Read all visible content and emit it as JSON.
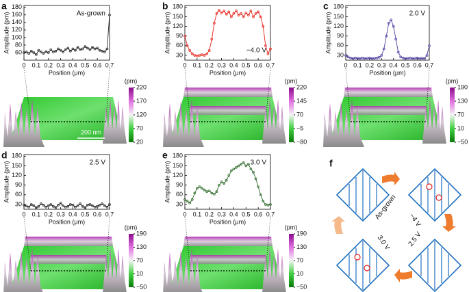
{
  "chart_data": [
    {
      "type": "line",
      "panel": "a",
      "annotation": "As-grown",
      "x_label": "Position (μm)",
      "y_label": "Amplitude (pm)",
      "x": [
        0,
        0.02,
        0.04,
        0.06,
        0.08,
        0.1,
        0.12,
        0.14,
        0.16,
        0.18,
        0.2,
        0.22,
        0.24,
        0.26,
        0.28,
        0.3,
        0.32,
        0.34,
        0.36,
        0.38,
        0.4,
        0.42,
        0.44,
        0.46,
        0.48,
        0.5,
        0.52,
        0.54,
        0.56,
        0.58,
        0.6,
        0.62,
        0.64,
        0.66,
        0.68,
        0.7
      ],
      "series": [
        {
          "color": "#222222",
          "values": [
            60,
            62,
            58,
            64,
            60,
            55,
            66,
            62,
            58,
            63,
            60,
            68,
            62,
            64,
            70,
            66,
            62,
            68,
            72,
            64,
            70,
            66,
            74,
            68,
            70,
            76,
            72,
            68,
            74,
            70,
            72,
            66,
            64,
            62,
            70,
            160
          ]
        }
      ],
      "xlim": [
        0,
        0.7
      ],
      "xticks": [
        0,
        0.1,
        0.2,
        0.3,
        0.4,
        0.5,
        0.6,
        0.7
      ],
      "ylim": [
        40,
        185
      ],
      "yticks": [
        60,
        80,
        100,
        120,
        140,
        160,
        180
      ],
      "scale_bar": "200 nm",
      "colorbar": {
        "unit": "(pm)",
        "ticks": [
          220,
          170,
          120,
          70,
          20
        ]
      }
    },
    {
      "type": "line",
      "panel": "b",
      "annotation": "−4.0 V",
      "x_label": "Position (μm)",
      "y_label": "Amplitude (pm)",
      "x": [
        0,
        0.02,
        0.04,
        0.06,
        0.08,
        0.1,
        0.12,
        0.14,
        0.16,
        0.18,
        0.2,
        0.22,
        0.24,
        0.26,
        0.28,
        0.3,
        0.32,
        0.34,
        0.36,
        0.38,
        0.4,
        0.42,
        0.44,
        0.46,
        0.48,
        0.5,
        0.52,
        0.54,
        0.56,
        0.58,
        0.6,
        0.62,
        0.64,
        0.66,
        0.68,
        0.7
      ],
      "series": [
        {
          "color": "#e8231b",
          "values": [
            90,
            60,
            45,
            35,
            30,
            28,
            30,
            32,
            30,
            35,
            45,
            80,
            130,
            160,
            170,
            162,
            168,
            158,
            165,
            150,
            160,
            168,
            155,
            160,
            150,
            162,
            155,
            168,
            150,
            160,
            165,
            150,
            120,
            60,
            35,
            50
          ]
        }
      ],
      "xlim": [
        0,
        0.7
      ],
      "xticks": [
        0,
        0.1,
        0.2,
        0.3,
        0.4,
        0.5,
        0.6,
        0.7
      ],
      "ylim": [
        15,
        185
      ],
      "yticks": [
        30,
        60,
        90,
        120,
        150,
        180
      ],
      "colorbar": {
        "unit": "(pm)",
        "ticks": [
          220,
          145,
          70,
          {
            "value": -5,
            "label": "−5"
          },
          {
            "value": -80,
            "label": "−80"
          }
        ]
      }
    },
    {
      "type": "line",
      "panel": "c",
      "annotation": "2.0 V",
      "x_label": "Position (μm)",
      "y_label": "Amplitude (pm)",
      "x": [
        0,
        0.02,
        0.04,
        0.06,
        0.08,
        0.1,
        0.12,
        0.14,
        0.16,
        0.18,
        0.2,
        0.22,
        0.24,
        0.26,
        0.28,
        0.3,
        0.32,
        0.34,
        0.36,
        0.38,
        0.4,
        0.42,
        0.44,
        0.46,
        0.48,
        0.5,
        0.52,
        0.54,
        0.56,
        0.58,
        0.6,
        0.62,
        0.64,
        0.66,
        0.68,
        0.7
      ],
      "series": [
        {
          "color": "#4a3fa0",
          "values": [
            30,
            25,
            22,
            20,
            22,
            21,
            20,
            22,
            20,
            21,
            22,
            20,
            21,
            22,
            24,
            30,
            50,
            90,
            130,
            140,
            120,
            80,
            40,
            25,
            22,
            20,
            21,
            22,
            20,
            21,
            22,
            20,
            21,
            20,
            30,
            60
          ]
        }
      ],
      "xlim": [
        0,
        0.7
      ],
      "xticks": [
        0,
        0.1,
        0.2,
        0.3,
        0.4,
        0.5,
        0.6,
        0.7
      ],
      "ylim": [
        15,
        185
      ],
      "yticks": [
        30,
        60,
        90,
        120,
        150,
        180
      ],
      "colorbar": {
        "unit": "(pm)",
        "ticks": [
          190,
          130,
          70,
          10,
          {
            "value": -50,
            "label": "−50"
          }
        ]
      }
    },
    {
      "type": "line",
      "panel": "d",
      "annotation": "2.5 V",
      "x_label": "Position (μm)",
      "y_label": "Amplitude (pm)",
      "x": [
        0,
        0.02,
        0.04,
        0.06,
        0.08,
        0.1,
        0.12,
        0.14,
        0.16,
        0.18,
        0.2,
        0.22,
        0.24,
        0.26,
        0.28,
        0.3,
        0.32,
        0.34,
        0.36,
        0.38,
        0.4,
        0.42,
        0.44,
        0.46,
        0.48,
        0.5,
        0.52,
        0.54,
        0.56,
        0.58,
        0.6,
        0.62,
        0.64,
        0.66,
        0.68,
        0.7
      ],
      "series": [
        {
          "color": "#222222",
          "values": [
            28,
            25,
            22,
            30,
            26,
            20,
            24,
            32,
            28,
            22,
            26,
            30,
            24,
            20,
            28,
            34,
            26,
            22,
            24,
            30,
            28,
            22,
            26,
            32,
            24,
            20,
            28,
            30,
            26,
            22,
            24,
            28,
            32,
            26,
            22,
            30
          ]
        }
      ],
      "xlim": [
        0,
        0.7
      ],
      "xticks": [
        0,
        0.1,
        0.2,
        0.3,
        0.4,
        0.5,
        0.6,
        0.7
      ],
      "ylim": [
        15,
        185
      ],
      "yticks": [
        30,
        60,
        90,
        120,
        150,
        180
      ],
      "colorbar": {
        "unit": "(pm)",
        "ticks": [
          190,
          130,
          70,
          10,
          {
            "value": -50,
            "label": "−50"
          }
        ]
      }
    },
    {
      "type": "line",
      "panel": "e",
      "annotation": "3.0 V",
      "x_label": "Position (μm)",
      "y_label": "Amplitude (pm)",
      "x": [
        0,
        0.02,
        0.04,
        0.06,
        0.08,
        0.1,
        0.12,
        0.14,
        0.16,
        0.18,
        0.2,
        0.22,
        0.24,
        0.26,
        0.28,
        0.3,
        0.32,
        0.34,
        0.36,
        0.38,
        0.4,
        0.42,
        0.44,
        0.46,
        0.48,
        0.5,
        0.52,
        0.54,
        0.56,
        0.58,
        0.6,
        0.62,
        0.64,
        0.66,
        0.68,
        0.7
      ],
      "series": [
        {
          "color": "#2f6b2a",
          "values": [
            45,
            40,
            35,
            45,
            65,
            80,
            85,
            80,
            75,
            70,
            72,
            65,
            62,
            70,
            90,
            100,
            95,
            105,
            120,
            135,
            140,
            145,
            150,
            155,
            160,
            150,
            155,
            140,
            130,
            110,
            85,
            60,
            40,
            30,
            28,
            30
          ]
        }
      ],
      "xlim": [
        0,
        0.7
      ],
      "xticks": [
        0,
        0.1,
        0.2,
        0.3,
        0.4,
        0.5,
        0.6,
        0.7
      ],
      "ylim": [
        15,
        185
      ],
      "yticks": [
        30,
        60,
        90,
        120,
        150,
        180
      ],
      "colorbar": {
        "unit": "(pm)",
        "ticks": [
          190,
          130,
          70,
          10,
          {
            "value": -50,
            "label": "−50"
          }
        ]
      }
    }
  ],
  "diagram": {
    "panel": "f",
    "labels": [
      "As-grown",
      "−4 V",
      "2.5 V",
      "3.0 V"
    ]
  }
}
